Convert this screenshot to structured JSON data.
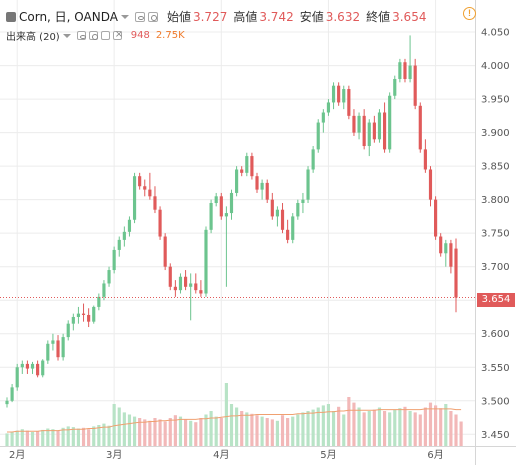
{
  "header": {
    "symbol": "Corn, 日, OANDA",
    "ohlc": [
      {
        "key": "始値",
        "value": "3.727"
      },
      {
        "key": "高値",
        "value": "3.742"
      },
      {
        "key": "安値",
        "value": "3.632"
      },
      {
        "key": "終値",
        "value": "3.654"
      }
    ],
    "volume_label": "出来高 (20)",
    "volume_value": "948",
    "volume_ma": "2.75K",
    "alert_icon": "!"
  },
  "colors": {
    "up": "#6cc48e",
    "down": "#e05a5a",
    "vol_up": "#b8e3c6",
    "vol_down": "#f2b8b8",
    "ma_line": "#f0a070",
    "grid": "#ececec",
    "axis": "#555555",
    "last_line": "#e05a5a"
  },
  "chart_data": {
    "type": "candlestick",
    "last_price_label": "3.654",
    "last_price": 3.654,
    "ylim": [
      3.44,
      4.065
    ],
    "yticks": [
      "3.450",
      "3.500",
      "3.550",
      "3.600",
      "3.650",
      "3.700",
      "3.750",
      "3.800",
      "3.850",
      "3.900",
      "3.950",
      "4.000",
      "4.050"
    ],
    "xticks": [
      {
        "label": "2月",
        "index": 2
      },
      {
        "label": "3月",
        "index": 21
      },
      {
        "label": "4月",
        "index": 42
      },
      {
        "label": "5月",
        "index": 63
      },
      {
        "label": "6月",
        "index": 84
      }
    ],
    "grid": true,
    "candles": [
      [
        3.495,
        3.505,
        3.49,
        3.5
      ],
      [
        3.5,
        3.525,
        3.498,
        3.52
      ],
      [
        3.52,
        3.555,
        3.515,
        3.55
      ],
      [
        3.55,
        3.56,
        3.54,
        3.555
      ],
      [
        3.555,
        3.56,
        3.54,
        3.548
      ],
      [
        3.548,
        3.558,
        3.54,
        3.555
      ],
      [
        3.555,
        3.56,
        3.535,
        3.538
      ],
      [
        3.538,
        3.562,
        3.535,
        3.56
      ],
      [
        3.56,
        3.59,
        3.555,
        3.585
      ],
      [
        3.585,
        3.6,
        3.575,
        3.59
      ],
      [
        3.59,
        3.598,
        3.56,
        3.565
      ],
      [
        3.565,
        3.6,
        3.56,
        3.595
      ],
      [
        3.595,
        3.62,
        3.59,
        3.615
      ],
      [
        3.615,
        3.63,
        3.605,
        3.625
      ],
      [
        3.625,
        3.64,
        3.615,
        3.63
      ],
      [
        3.63,
        3.645,
        3.618,
        3.628
      ],
      [
        3.628,
        3.638,
        3.61,
        3.618
      ],
      [
        3.618,
        3.642,
        3.615,
        3.64
      ],
      [
        3.64,
        3.66,
        3.635,
        3.655
      ],
      [
        3.655,
        3.68,
        3.65,
        3.675
      ],
      [
        3.675,
        3.7,
        3.67,
        3.695
      ],
      [
        3.695,
        3.73,
        3.69,
        3.725
      ],
      [
        3.725,
        3.745,
        3.715,
        3.74
      ],
      [
        3.74,
        3.76,
        3.73,
        3.752
      ],
      [
        3.752,
        3.775,
        3.745,
        3.77
      ],
      [
        3.77,
        3.84,
        3.765,
        3.835
      ],
      [
        3.835,
        3.84,
        3.815,
        3.82
      ],
      [
        3.82,
        3.83,
        3.805,
        3.815
      ],
      [
        3.815,
        3.84,
        3.8,
        3.805
      ],
      [
        3.805,
        3.82,
        3.78,
        3.785
      ],
      [
        3.785,
        3.79,
        3.74,
        3.745
      ],
      [
        3.745,
        3.75,
        3.695,
        3.7
      ],
      [
        3.7,
        3.705,
        3.665,
        3.67
      ],
      [
        3.67,
        3.68,
        3.655,
        3.665
      ],
      [
        3.665,
        3.69,
        3.66,
        3.685
      ],
      [
        3.685,
        3.695,
        3.665,
        3.67
      ],
      [
        3.67,
        3.69,
        3.62,
        3.675
      ],
      [
        3.675,
        3.69,
        3.66,
        3.665
      ],
      [
        3.665,
        3.68,
        3.655,
        3.66
      ],
      [
        3.66,
        3.76,
        3.655,
        3.755
      ],
      [
        3.755,
        3.8,
        3.75,
        3.795
      ],
      [
        3.795,
        3.81,
        3.79,
        3.805
      ],
      [
        3.805,
        3.81,
        3.77,
        3.775
      ],
      [
        3.775,
        3.79,
        3.67,
        3.78
      ],
      [
        3.78,
        3.815,
        3.77,
        3.81
      ],
      [
        3.81,
        3.85,
        3.805,
        3.845
      ],
      [
        3.845,
        3.85,
        3.835,
        3.84
      ],
      [
        3.84,
        3.87,
        3.835,
        3.865
      ],
      [
        3.865,
        3.87,
        3.83,
        3.835
      ],
      [
        3.835,
        3.84,
        3.81,
        3.815
      ],
      [
        3.815,
        3.83,
        3.8,
        3.825
      ],
      [
        3.825,
        3.83,
        3.795,
        3.8
      ],
      [
        3.8,
        3.81,
        3.77,
        3.775
      ],
      [
        3.775,
        3.79,
        3.76,
        3.785
      ],
      [
        3.785,
        3.795,
        3.75,
        3.755
      ],
      [
        3.755,
        3.77,
        3.735,
        3.74
      ],
      [
        3.74,
        3.78,
        3.735,
        3.775
      ],
      [
        3.775,
        3.8,
        3.77,
        3.795
      ],
      [
        3.795,
        3.81,
        3.78,
        3.8
      ],
      [
        3.8,
        3.85,
        3.795,
        3.845
      ],
      [
        3.845,
        3.88,
        3.84,
        3.875
      ],
      [
        3.875,
        3.92,
        3.87,
        3.915
      ],
      [
        3.915,
        3.935,
        3.9,
        3.93
      ],
      [
        3.93,
        3.95,
        3.925,
        3.945
      ],
      [
        3.945,
        3.975,
        3.935,
        3.97
      ],
      [
        3.97,
        3.975,
        3.94,
        3.945
      ],
      [
        3.945,
        3.97,
        3.935,
        3.965
      ],
      [
        3.965,
        3.97,
        3.92,
        3.925
      ],
      [
        3.925,
        3.935,
        3.895,
        3.9
      ],
      [
        3.9,
        3.93,
        3.89,
        3.925
      ],
      [
        3.925,
        3.935,
        3.875,
        3.88
      ],
      [
        3.88,
        3.92,
        3.865,
        3.915
      ],
      [
        3.915,
        3.925,
        3.885,
        3.89
      ],
      [
        3.89,
        3.935,
        3.885,
        3.93
      ],
      [
        3.93,
        3.945,
        3.87,
        3.875
      ],
      [
        3.875,
        3.96,
        3.87,
        3.955
      ],
      [
        3.955,
        3.985,
        3.95,
        3.98
      ],
      [
        3.98,
        4.01,
        3.975,
        4.005
      ],
      [
        4.005,
        4.01,
        3.975,
        3.98
      ],
      [
        3.98,
        4.045,
        3.975,
        4.0
      ],
      [
        4.0,
        4.01,
        3.935,
        3.94
      ],
      [
        3.94,
        3.945,
        3.87,
        3.875
      ],
      [
        3.875,
        3.89,
        3.84,
        3.845
      ],
      [
        3.845,
        3.85,
        3.79,
        3.8
      ],
      [
        3.8,
        3.805,
        3.74,
        3.745
      ],
      [
        3.745,
        3.75,
        3.715,
        3.72
      ],
      [
        3.72,
        3.74,
        3.7,
        3.735
      ],
      [
        3.735,
        3.74,
        3.69,
        3.7
      ],
      [
        3.727,
        3.742,
        3.632,
        3.654
      ]
    ],
    "volume_max": 160,
    "volumes": [
      18,
      20,
      22,
      24,
      22,
      20,
      21,
      23,
      25,
      24,
      22,
      26,
      28,
      27,
      25,
      26,
      24,
      28,
      30,
      32,
      29,
      60,
      55,
      48,
      45,
      42,
      40,
      38,
      36,
      40,
      38,
      35,
      40,
      44,
      42,
      38,
      36,
      34,
      40,
      45,
      50,
      42,
      40,
      90,
      60,
      55,
      50,
      48,
      46,
      44,
      42,
      40,
      38,
      36,
      44,
      40,
      42,
      45,
      48,
      50,
      52,
      55,
      58,
      60,
      50,
      56,
      45,
      70,
      62,
      55,
      48,
      50,
      52,
      55,
      50,
      48,
      52,
      54,
      56,
      50,
      48,
      45,
      55,
      62,
      58,
      54,
      60,
      50,
      45,
      35
    ],
    "volume_ma": [
      20,
      20,
      21,
      21,
      21,
      21,
      21,
      22,
      22,
      22,
      22,
      23,
      23,
      24,
      24,
      24,
      25,
      25,
      26,
      27,
      27,
      29,
      30,
      31,
      32,
      33,
      34,
      34,
      35,
      35,
      36,
      36,
      37,
      37,
      38,
      38,
      38,
      38,
      39,
      39,
      40,
      40,
      41,
      42,
      43,
      43,
      44,
      44,
      44,
      45,
      45,
      45,
      45,
      45,
      45,
      45,
      45,
      46,
      46,
      47,
      47,
      48,
      48,
      49,
      49,
      50,
      50,
      51,
      51,
      51,
      51,
      51,
      51,
      52,
      52,
      52,
      52,
      52,
      52,
      52,
      52,
      52,
      53,
      53,
      53,
      53,
      53,
      53,
      52,
      52
    ]
  }
}
